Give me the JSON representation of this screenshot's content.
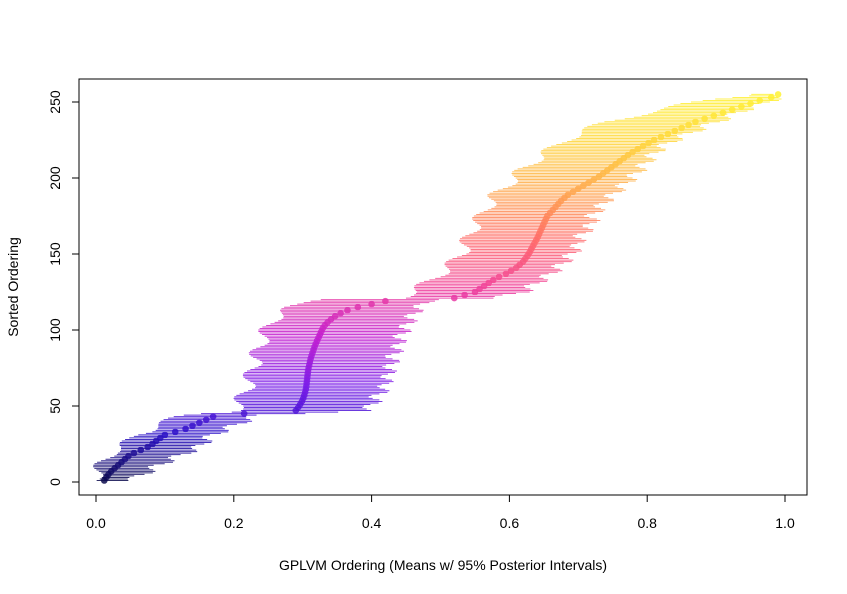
{
  "chart_data": {
    "type": "scatter",
    "title": "",
    "xlabel": "GPLVM Ordering (Means w/ 95% Posterior Intervals)",
    "ylabel": "Sorted Ordering",
    "xlim": [
      0.0,
      1.0
    ],
    "ylim": [
      0,
      255
    ],
    "x_ticks": [
      "0.0",
      "0.2",
      "0.4",
      "0.6",
      "0.8",
      "1.0"
    ],
    "y_ticks": [
      "0",
      "50",
      "100",
      "150",
      "200",
      "250"
    ],
    "grid": false,
    "legend": "none",
    "color_scale": [
      "#0b0b4a",
      "#2b10c8",
      "#7a1ce8",
      "#c21fd0",
      "#f0409a",
      "#ff6a6a",
      "#ffa64d",
      "#ffd43b",
      "#fff233"
    ],
    "series": [
      {
        "points": [
          [
            0.012,
            1,
            -0.004,
            0.04
          ],
          [
            0.015,
            3,
            -0.003,
            0.06
          ],
          [
            0.018,
            5,
            0.0,
            0.07
          ],
          [
            0.022,
            7,
            0.002,
            0.075
          ],
          [
            0.027,
            9,
            0.005,
            0.085
          ],
          [
            0.032,
            11,
            0.008,
            0.09
          ],
          [
            0.037,
            13,
            0.01,
            0.1
          ],
          [
            0.042,
            15,
            0.013,
            0.11
          ],
          [
            0.047,
            17,
            0.017,
            0.12
          ],
          [
            0.055,
            19,
            0.02,
            0.13
          ],
          [
            0.065,
            21,
            0.03,
            0.14
          ],
          [
            0.075,
            23,
            0.04,
            0.15
          ],
          [
            0.082,
            25,
            0.045,
            0.155
          ],
          [
            0.09,
            28,
            0.05,
            0.16
          ],
          [
            0.1,
            31,
            0.055,
            0.17
          ],
          [
            0.115,
            33,
            0.07,
            0.18
          ],
          [
            0.13,
            35,
            0.08,
            0.19
          ],
          [
            0.14,
            37,
            0.09,
            0.2
          ],
          [
            0.15,
            39,
            0.1,
            0.21
          ],
          [
            0.16,
            41,
            0.11,
            0.22
          ],
          [
            0.17,
            43,
            0.12,
            0.23
          ],
          [
            0.18,
            44,
            0.13,
            0.24
          ],
          [
            0.215,
            45,
            0.15,
            0.3
          ],
          [
            0.255,
            46,
            0.19,
            0.34
          ],
          [
            0.29,
            47,
            0.2,
            0.39
          ],
          [
            0.295,
            50,
            0.205,
            0.4
          ],
          [
            0.3,
            54,
            0.21,
            0.405
          ],
          [
            0.303,
            58,
            0.215,
            0.41
          ],
          [
            0.305,
            62,
            0.22,
            0.42
          ],
          [
            0.306,
            66,
            0.22,
            0.42
          ],
          [
            0.307,
            70,
            0.225,
            0.425
          ],
          [
            0.308,
            74,
            0.225,
            0.425
          ],
          [
            0.31,
            78,
            0.23,
            0.43
          ],
          [
            0.312,
            82,
            0.23,
            0.43
          ],
          [
            0.315,
            86,
            0.235,
            0.435
          ],
          [
            0.318,
            90,
            0.24,
            0.44
          ],
          [
            0.322,
            94,
            0.24,
            0.44
          ],
          [
            0.326,
            98,
            0.245,
            0.445
          ],
          [
            0.33,
            102,
            0.25,
            0.45
          ],
          [
            0.338,
            106,
            0.255,
            0.455
          ],
          [
            0.35,
            110,
            0.265,
            0.46
          ],
          [
            0.365,
            113,
            0.275,
            0.465
          ],
          [
            0.38,
            115,
            0.285,
            0.47
          ],
          [
            0.4,
            117,
            0.3,
            0.475
          ],
          [
            0.42,
            119,
            0.31,
            0.48
          ],
          [
            0.435,
            120,
            0.32,
            0.49
          ],
          [
            0.52,
            121,
            0.44,
            0.58
          ],
          [
            0.535,
            123,
            0.45,
            0.6
          ],
          [
            0.55,
            125,
            0.46,
            0.62
          ],
          [
            0.56,
            128,
            0.47,
            0.63
          ],
          [
            0.57,
            131,
            0.48,
            0.64
          ],
          [
            0.58,
            134,
            0.49,
            0.65
          ],
          [
            0.595,
            137,
            0.5,
            0.66
          ],
          [
            0.61,
            141,
            0.51,
            0.67
          ],
          [
            0.62,
            145,
            0.52,
            0.68
          ],
          [
            0.628,
            150,
            0.53,
            0.69
          ],
          [
            0.635,
            156,
            0.535,
            0.7
          ],
          [
            0.64,
            160,
            0.54,
            0.7
          ],
          [
            0.645,
            165,
            0.545,
            0.71
          ],
          [
            0.65,
            170,
            0.55,
            0.72
          ],
          [
            0.655,
            175,
            0.56,
            0.72
          ],
          [
            0.665,
            180,
            0.565,
            0.73
          ],
          [
            0.675,
            185,
            0.575,
            0.74
          ],
          [
            0.685,
            189,
            0.58,
            0.75
          ],
          [
            0.7,
            193,
            0.59,
            0.76
          ],
          [
            0.715,
            197,
            0.6,
            0.77
          ],
          [
            0.73,
            201,
            0.61,
            0.78
          ],
          [
            0.745,
            206,
            0.62,
            0.79
          ],
          [
            0.76,
            211,
            0.635,
            0.8
          ],
          [
            0.775,
            216,
            0.65,
            0.81
          ],
          [
            0.79,
            220,
            0.665,
            0.82
          ],
          [
            0.81,
            225,
            0.68,
            0.84
          ],
          [
            0.83,
            229,
            0.7,
            0.86
          ],
          [
            0.85,
            233,
            0.72,
            0.88
          ],
          [
            0.87,
            237,
            0.74,
            0.9
          ],
          [
            0.89,
            240,
            0.77,
            0.92
          ],
          [
            0.91,
            243,
            0.8,
            0.93
          ],
          [
            0.93,
            246,
            0.83,
            0.95
          ],
          [
            0.95,
            249,
            0.86,
            0.97
          ],
          [
            0.97,
            252,
            0.9,
            0.985
          ],
          [
            0.99,
            254,
            0.94,
            0.995
          ]
        ]
      }
    ]
  }
}
